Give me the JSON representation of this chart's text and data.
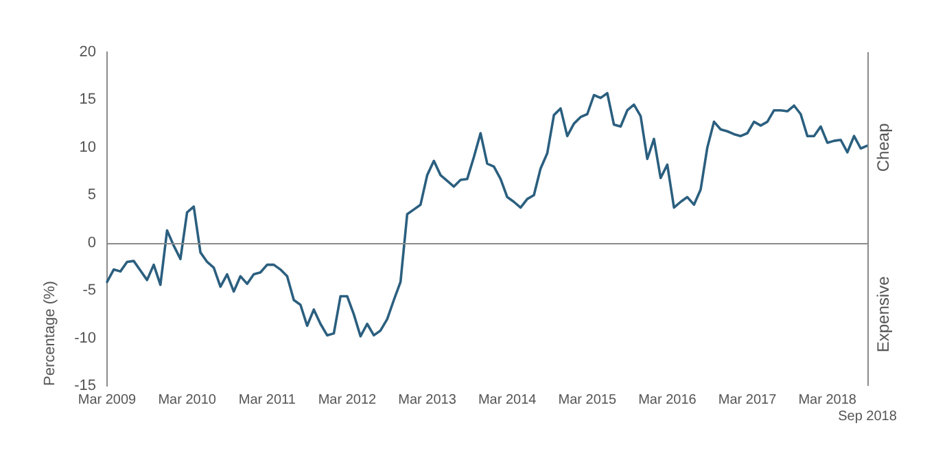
{
  "chart_data": {
    "type": "line",
    "ylabel": "Percentage (%)",
    "categories": [
      "Mar 2009",
      null,
      null,
      null,
      null,
      null,
      null,
      null,
      null,
      null,
      null,
      null,
      "Mar 2010",
      null,
      null,
      null,
      null,
      null,
      null,
      null,
      null,
      null,
      null,
      null,
      "Mar 2011",
      null,
      null,
      null,
      null,
      null,
      null,
      null,
      null,
      null,
      null,
      null,
      "Mar 2012",
      null,
      null,
      null,
      null,
      null,
      null,
      null,
      null,
      null,
      null,
      null,
      "Mar 2013",
      null,
      null,
      null,
      null,
      null,
      null,
      null,
      null,
      null,
      null,
      null,
      "Mar 2014",
      null,
      null,
      null,
      null,
      null,
      null,
      null,
      null,
      null,
      null,
      null,
      "Mar 2015",
      null,
      null,
      null,
      null,
      null,
      null,
      null,
      null,
      null,
      null,
      null,
      "Mar 2016",
      null,
      null,
      null,
      null,
      null,
      null,
      null,
      null,
      null,
      null,
      null,
      "Mar 2017",
      null,
      null,
      null,
      null,
      null,
      null,
      null,
      null,
      null,
      null,
      null,
      "Mar 2018",
      null,
      null,
      null,
      null,
      null,
      "Sep 2018"
    ],
    "series": [
      {
        "color": "#2b5f7f",
        "values": [
          -4.1,
          -2.8,
          -3.0,
          -2.0,
          -1.9,
          -2.9,
          -3.9,
          -2.3,
          -4.4,
          1.3,
          -0.3,
          -1.7,
          3.2,
          3.8,
          -1.0,
          -2.0,
          -2.6,
          -4.6,
          -3.3,
          -5.1,
          -3.5,
          -4.3,
          -3.3,
          -3.1,
          -2.3,
          -2.3,
          -2.8,
          -3.5,
          -6.0,
          -6.5,
          -8.7,
          -7.0,
          -8.5,
          -9.7,
          -9.5,
          -5.6,
          -5.6,
          -7.5,
          -9.8,
          -8.5,
          -9.7,
          -9.2,
          -8.0,
          -6.0,
          -4.1,
          3.0,
          3.5,
          4.0,
          7.1,
          8.6,
          7.1,
          6.5,
          5.9,
          6.6,
          6.7,
          9.0,
          11.5,
          8.3,
          8.0,
          6.7,
          4.8,
          4.3,
          3.7,
          4.6,
          5.0,
          7.8,
          9.4,
          13.4,
          14.1,
          11.2,
          12.5,
          13.2,
          13.5,
          15.5,
          15.2,
          15.7,
          12.4,
          12.2,
          13.9,
          14.5,
          13.3,
          8.8,
          10.9,
          6.8,
          8.2,
          3.7,
          4.3,
          4.8,
          4.0,
          5.6,
          10.0,
          12.7,
          11.9,
          11.7,
          11.4,
          11.2,
          11.5,
          12.7,
          12.3,
          12.7,
          13.9,
          13.9,
          13.8,
          14.4,
          13.5,
          11.2,
          11.2,
          12.2,
          10.5,
          10.7,
          10.8,
          9.5,
          11.2,
          9.9,
          10.2
        ]
      }
    ],
    "ylim": [
      -15,
      20
    ],
    "yticks": [
      -15,
      -10,
      -5,
      0,
      5,
      10,
      15,
      20
    ],
    "ref_lines": [
      {
        "axis": "y",
        "value": 0,
        "color": "#8a8a8a"
      }
    ],
    "annotations": [
      "Cheap",
      "Expensive"
    ],
    "grid": false,
    "legend": false,
    "marker": "none",
    "line_style": "solid"
  }
}
